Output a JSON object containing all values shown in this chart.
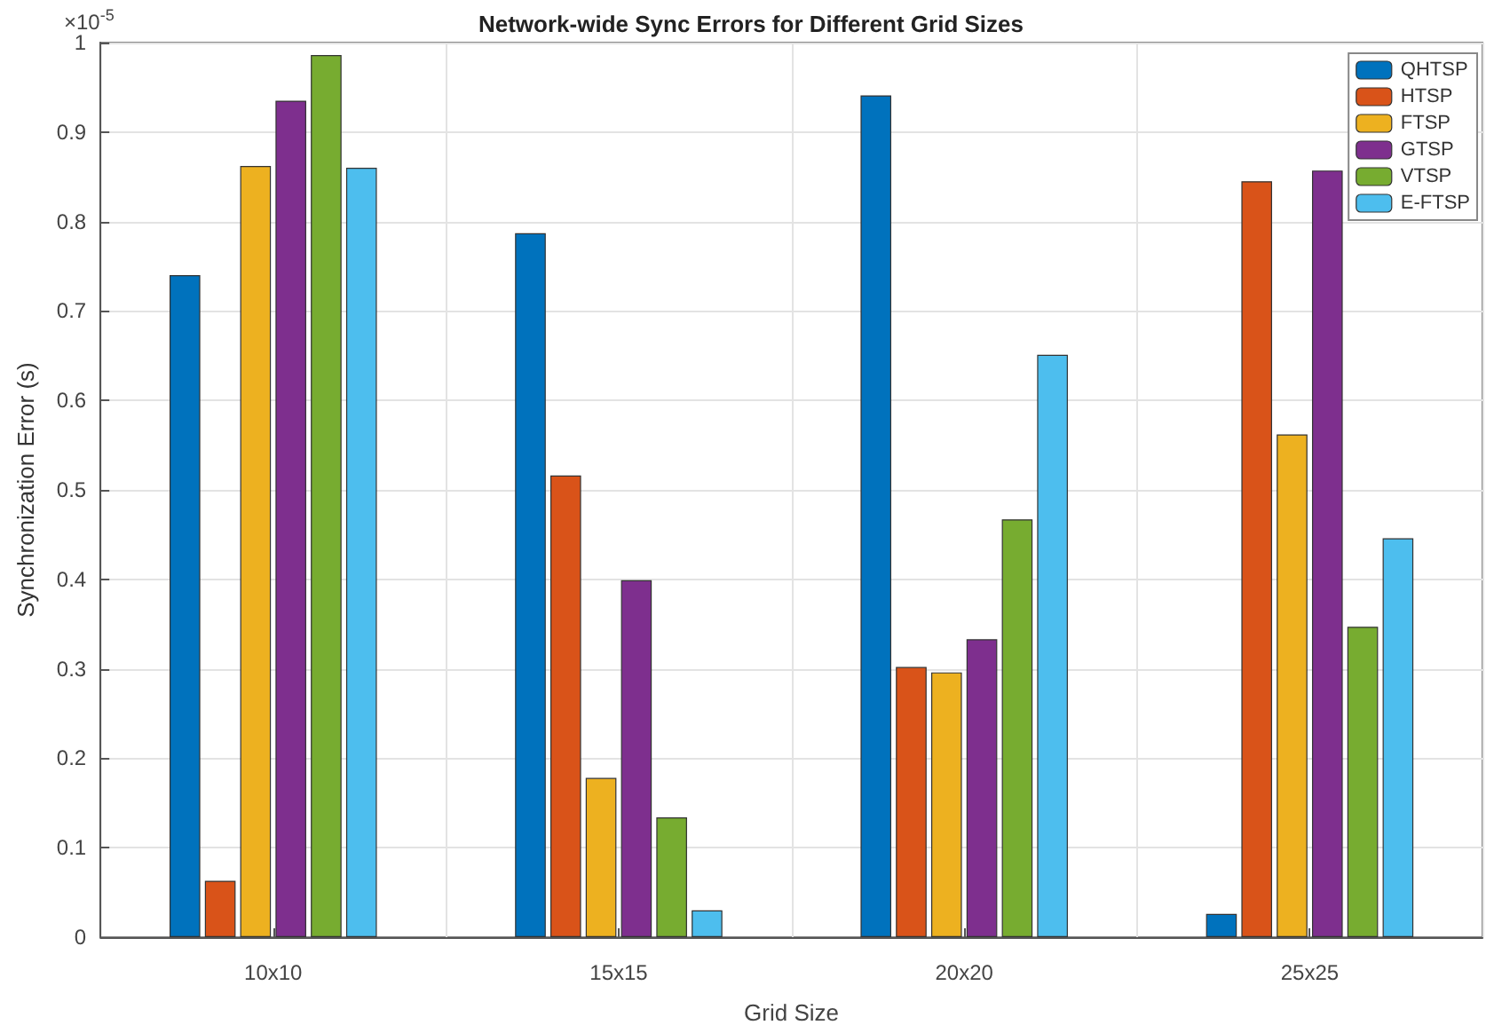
{
  "chart_data": {
    "type": "bar",
    "title": "Network-wide Sync Errors for Different Grid Sizes",
    "xlabel": "Grid Size",
    "ylabel": "Synchronization Error (s)",
    "annotations": [
      "×10$^{-5}$"
    ],
    "categories": [
      "10x10",
      "15x15",
      "20x20",
      "25x25"
    ],
    "series": [
      {
        "name": "QHTSP",
        "color": "#0072bd",
        "values": [
          0.74,
          0.787,
          0.941,
          0.026
        ]
      },
      {
        "name": "HTSP",
        "color": "#d95319",
        "values": [
          0.063,
          0.516,
          0.302,
          0.845
        ]
      },
      {
        "name": "FTSP",
        "color": "#edb120",
        "values": [
          0.862,
          0.178,
          0.296,
          0.562
        ]
      },
      {
        "name": "GTSP",
        "color": "#7e2f8e",
        "values": [
          0.935,
          0.399,
          0.333,
          0.857
        ]
      },
      {
        "name": "VTSP",
        "color": "#77ac30",
        "values": [
          0.986,
          0.134,
          0.467,
          0.347
        ]
      },
      {
        "name": "E-FTSP",
        "color": "#4dbeee",
        "values": [
          0.86,
          0.03,
          0.651,
          0.446
        ]
      }
    ],
    "ylim": [
      0,
      1
    ],
    "yticks": [
      0,
      0.1,
      0.2,
      0.3,
      0.4,
      0.5,
      0.6,
      0.7,
      0.8,
      0.9,
      1
    ],
    "grid": true,
    "legend": "top right"
  }
}
